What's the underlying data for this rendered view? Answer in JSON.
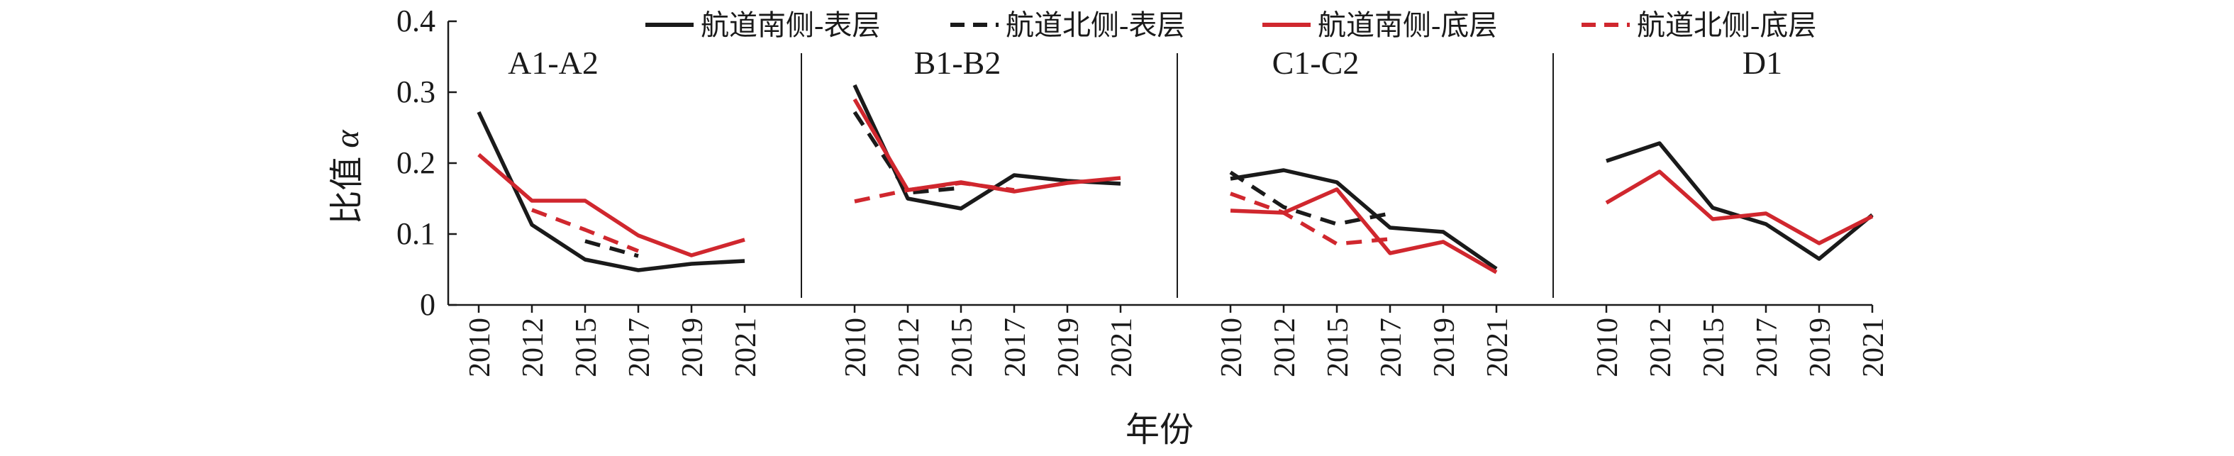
{
  "chart_data": {
    "type": "line",
    "ylabel": "比值 α",
    "xlabel": "年份",
    "ylim": [
      0,
      0.4
    ],
    "yticks": [
      "0",
      "0.1",
      "0.2",
      "0.3",
      "0.4"
    ],
    "grid": false,
    "legend_position": "top",
    "series_styles": [
      {
        "name": "航道南侧-表层",
        "color": "#1a1a1a",
        "dashed": false
      },
      {
        "name": "航道北侧-表层",
        "color": "#1a1a1a",
        "dashed": true
      },
      {
        "name": "航道南侧-底层",
        "color": "#d0272e",
        "dashed": false
      },
      {
        "name": "航道北侧-底层",
        "color": "#d0272e",
        "dashed": true
      }
    ],
    "categories": [
      "2010",
      "2012",
      "2015",
      "2017",
      "2019",
      "2021"
    ],
    "panels": [
      {
        "label": "A1-A2",
        "series": [
          {
            "name": "航道南侧-表层",
            "values": [
              0.272,
              0.113,
              0.064,
              0.049,
              0.058,
              0.062
            ]
          },
          {
            "name": "航道北侧-表层",
            "values": [
              null,
              null,
              0.09,
              0.069,
              null,
              null
            ]
          },
          {
            "name": "航道南侧-底层",
            "values": [
              0.212,
              0.147,
              0.147,
              0.098,
              0.07,
              0.092
            ]
          },
          {
            "name": "航道北侧-底层",
            "values": [
              null,
              0.134,
              0.106,
              0.076,
              null,
              null
            ]
          }
        ]
      },
      {
        "label": "B1-B2",
        "series": [
          {
            "name": "航道南侧-表层",
            "values": [
              0.31,
              0.15,
              0.136,
              0.183,
              0.175,
              0.171
            ]
          },
          {
            "name": "航道北侧-表层",
            "values": [
              0.272,
              0.158,
              0.165,
              null,
              null,
              null
            ]
          },
          {
            "name": "航道南侧-底层",
            "values": [
              0.29,
              0.162,
              0.173,
              0.16,
              0.172,
              0.179
            ]
          },
          {
            "name": "航道北侧-底层",
            "values": [
              0.146,
              0.162,
              0.172,
              0.162,
              null,
              null
            ]
          }
        ]
      },
      {
        "label": "C1-C2",
        "series": [
          {
            "name": "航道南侧-表层",
            "values": [
              0.178,
              0.19,
              0.173,
              0.109,
              0.103,
              0.051
            ]
          },
          {
            "name": "航道北侧-表层",
            "values": [
              0.187,
              0.138,
              0.114,
              0.129,
              null,
              null
            ]
          },
          {
            "name": "航道南侧-底层",
            "values": [
              0.133,
              0.13,
              0.163,
              0.073,
              0.089,
              0.046
            ]
          },
          {
            "name": "航道北侧-底层",
            "values": [
              0.157,
              0.13,
              0.086,
              0.093,
              null,
              null
            ]
          }
        ]
      },
      {
        "label": "D1",
        "series": [
          {
            "name": "航道南侧-表层",
            "values": [
              0.203,
              0.228,
              0.137,
              0.114,
              0.065,
              0.127
            ]
          },
          {
            "name": "航道南侧-底层",
            "values": [
              0.144,
              0.188,
              0.121,
              0.129,
              0.087,
              0.125
            ]
          }
        ]
      }
    ]
  }
}
